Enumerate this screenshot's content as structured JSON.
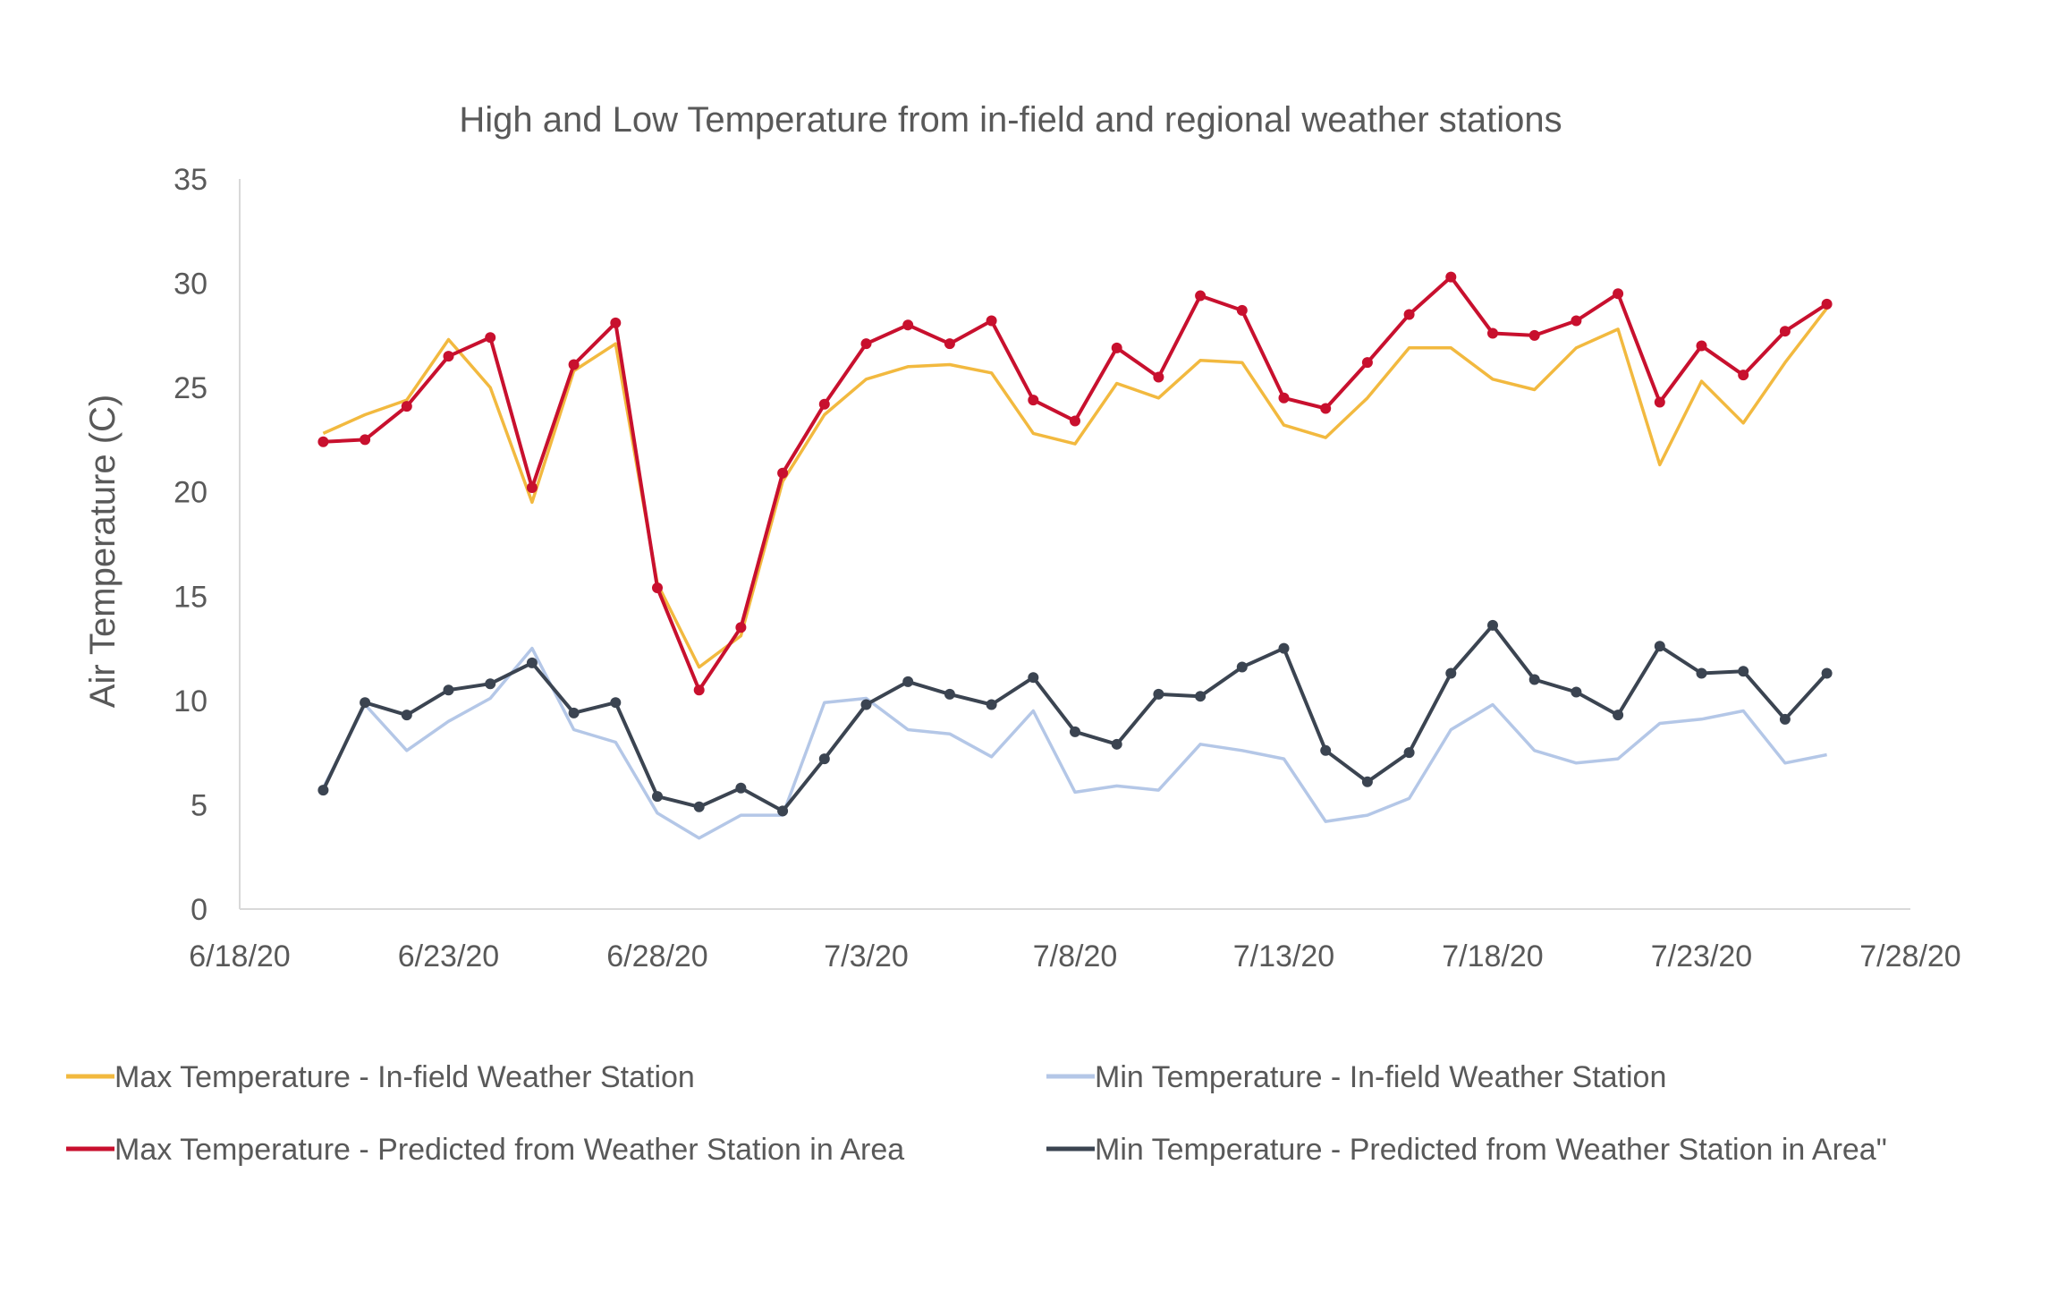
{
  "chart_data": {
    "type": "line",
    "title": "High and Low Temperature from in-field and regional weather stations",
    "xlabel": "",
    "ylabel": "Air Temperature (C)",
    "ylim": [
      0,
      35
    ],
    "yticks": [
      "0",
      "5",
      "10",
      "15",
      "20",
      "25",
      "30",
      "35"
    ],
    "xlim": [
      "2020-06-18",
      "2020-07-28"
    ],
    "xticks": [
      "6/18/20",
      "6/23/20",
      "6/28/20",
      "7/3/20",
      "7/8/20",
      "7/13/20",
      "7/18/20",
      "7/23/20",
      "7/28/20"
    ],
    "x": [
      "2020-06-20",
      "2020-06-21",
      "2020-06-22",
      "2020-06-23",
      "2020-06-24",
      "2020-06-25",
      "2020-06-26",
      "2020-06-27",
      "2020-06-28",
      "2020-06-29",
      "2020-06-30",
      "2020-07-01",
      "2020-07-02",
      "2020-07-03",
      "2020-07-04",
      "2020-07-05",
      "2020-07-06",
      "2020-07-07",
      "2020-07-08",
      "2020-07-09",
      "2020-07-10",
      "2020-07-11",
      "2020-07-12",
      "2020-07-13",
      "2020-07-14",
      "2020-07-15",
      "2020-07-16",
      "2020-07-17",
      "2020-07-18",
      "2020-07-19",
      "2020-07-20",
      "2020-07-21",
      "2020-07-22",
      "2020-07-23",
      "2020-07-24",
      "2020-07-25",
      "2020-07-26"
    ],
    "grid": false,
    "legend_position": "bottom",
    "series": [
      {
        "name": "Max Temperature - In-field Weather Station",
        "color": "#f2b93f",
        "markers": false,
        "values": [
          22.8,
          23.7,
          24.4,
          27.3,
          25.0,
          19.5,
          25.8,
          27.1,
          15.6,
          11.6,
          13.1,
          20.5,
          23.7,
          25.4,
          26.0,
          26.1,
          25.7,
          22.8,
          22.3,
          25.2,
          24.5,
          26.3,
          26.2,
          23.2,
          22.6,
          24.5,
          26.9,
          26.9,
          25.4,
          24.9,
          26.9,
          27.8,
          21.3,
          25.3,
          23.3,
          26.2,
          28.8
        ]
      },
      {
        "name": "Max Temperature - Predicted from Weather Station in Area",
        "color": "#c8102e",
        "markers": true,
        "values": [
          22.4,
          22.5,
          24.1,
          26.5,
          27.4,
          20.2,
          26.1,
          28.1,
          15.4,
          10.5,
          13.5,
          20.9,
          24.2,
          27.1,
          28.0,
          27.1,
          28.2,
          24.4,
          23.4,
          26.9,
          25.5,
          29.4,
          28.7,
          24.5,
          24.0,
          26.2,
          28.5,
          30.3,
          27.6,
          27.5,
          28.2,
          29.5,
          24.3,
          27.0,
          25.6,
          27.7,
          29.0
        ]
      },
      {
        "name": "Min Temperature - In-field Weather Station",
        "color": "#b4c7e7",
        "markers": false,
        "values": [
          5.8,
          9.8,
          7.6,
          9.0,
          10.1,
          12.5,
          8.6,
          8.0,
          4.6,
          3.4,
          4.5,
          4.5,
          9.9,
          10.1,
          8.6,
          8.4,
          7.3,
          9.5,
          5.6,
          5.9,
          5.7,
          7.9,
          7.6,
          7.2,
          4.2,
          4.5,
          5.3,
          8.6,
          9.8,
          7.6,
          7.0,
          7.2,
          8.9,
          9.1,
          9.5,
          7.0,
          7.4
        ]
      },
      {
        "name": "Min Temperature - Predicted from Weather Station in Area\"",
        "color": "#3b4451",
        "markers": true,
        "values": [
          5.7,
          9.9,
          9.3,
          10.5,
          10.8,
          11.8,
          9.4,
          9.9,
          5.4,
          4.9,
          5.8,
          4.7,
          7.2,
          9.8,
          10.9,
          10.3,
          9.8,
          11.1,
          8.5,
          7.9,
          10.3,
          10.2,
          11.6,
          12.5,
          7.6,
          6.1,
          7.5,
          11.3,
          13.6,
          11.0,
          10.4,
          9.3,
          12.6,
          11.3,
          11.4,
          9.1,
          11.3
        ]
      }
    ]
  }
}
